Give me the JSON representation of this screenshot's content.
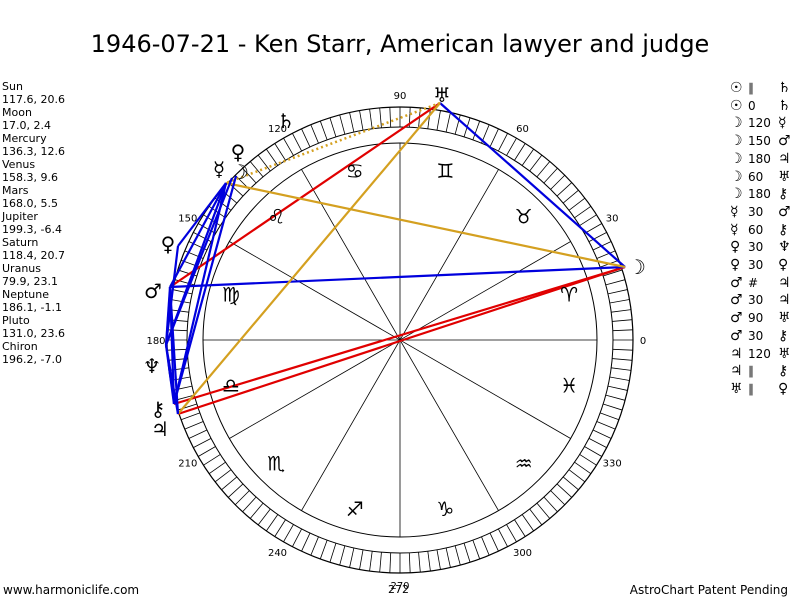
{
  "title": "1946-07-21 - Ken Starr, American lawyer and judge",
  "positions": [
    {
      "name": "Sun",
      "coords": "117.6, 20.6"
    },
    {
      "name": "Moon",
      "coords": "17.0, 2.4"
    },
    {
      "name": "Mercury",
      "coords": "136.3, 12.6"
    },
    {
      "name": "Venus",
      "coords": "158.3, 9.6"
    },
    {
      "name": "Mars",
      "coords": "168.0, 5.5"
    },
    {
      "name": "Jupiter",
      "coords": "199.3, -6.4"
    },
    {
      "name": "Saturn",
      "coords": "118.4, 20.7"
    },
    {
      "name": "Uranus",
      "coords": "79.9, 23.1"
    },
    {
      "name": "Neptune",
      "coords": "186.1, -1.1"
    },
    {
      "name": "Pluto",
      "coords": "131.0, 23.6"
    },
    {
      "name": "Chiron",
      "coords": "196.2, -7.0"
    }
  ],
  "aspects": [
    {
      "p1": "☉",
      "asp": "∥",
      "p2": "♄"
    },
    {
      "p1": "☉",
      "asp": "0",
      "p2": "♄"
    },
    {
      "p1": "☽",
      "asp": "120",
      "p2": "☿"
    },
    {
      "p1": "☽",
      "asp": "150",
      "p2": "♂"
    },
    {
      "p1": "☽",
      "asp": "180",
      "p2": "♃"
    },
    {
      "p1": "☽",
      "asp": "60",
      "p2": "♅"
    },
    {
      "p1": "☽",
      "asp": "180",
      "p2": "⚷"
    },
    {
      "p1": "☿",
      "asp": "30",
      "p2": "♂"
    },
    {
      "p1": "☿",
      "asp": "60",
      "p2": "⚷"
    },
    {
      "p1": "♀",
      "asp": "30",
      "p2": "♆"
    },
    {
      "p1": "♀",
      "asp": "30",
      "p2": "♀"
    },
    {
      "p1": "♂",
      "asp": "#",
      "p2": "♃"
    },
    {
      "p1": "♂",
      "asp": "30",
      "p2": "♃"
    },
    {
      "p1": "♂",
      "asp": "90",
      "p2": "♅"
    },
    {
      "p1": "♂",
      "asp": "30",
      "p2": "⚷"
    },
    {
      "p1": "♃",
      "asp": "120",
      "p2": "♅"
    },
    {
      "p1": "♃",
      "asp": "∥",
      "p2": "⚷"
    },
    {
      "p1": "♅",
      "asp": "∥",
      "p2": "♀"
    }
  ],
  "wheel_degree_labels": [
    "90",
    "60",
    "30",
    "0",
    "330",
    "300",
    "272",
    "270",
    "240",
    "210",
    "180",
    "150",
    "120"
  ],
  "zodiac_glyphs": [
    "♊",
    "♉",
    "♈",
    "♓",
    "♒",
    "♑",
    "♐",
    "♏",
    "♎",
    "♍",
    "♌",
    "♋"
  ],
  "planet_glyphs": {
    "sun": "☉",
    "moon": "☽",
    "mercury": "☿",
    "venus": "♀",
    "mars": "♂",
    "jupiter": "♃",
    "saturn": "♄",
    "uranus": "♅",
    "neptune": "♆",
    "pluto": "♀",
    "chiron": "⚷"
  },
  "colors": {
    "red": "#e00000",
    "blue": "#0000dd",
    "gold": "#d4a020"
  },
  "footer": {
    "site": "www.harmoniclife.com",
    "degree": "272",
    "patent": "AstroChart Patent Pending"
  }
}
